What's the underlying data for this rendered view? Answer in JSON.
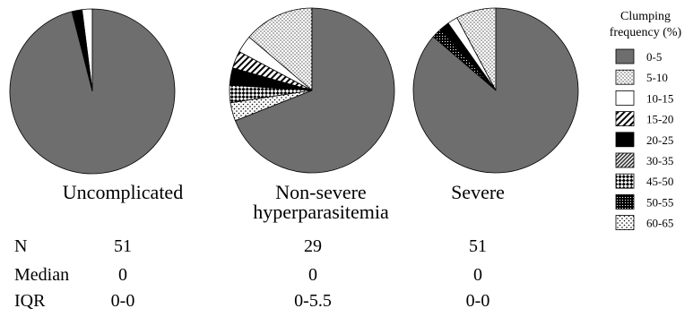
{
  "chart_data": {
    "type": "pie",
    "legend": {
      "title_lines": [
        "Clumping",
        "frequency (%)"
      ],
      "placement": "right",
      "entries": [
        {
          "label": "0-5",
          "pattern": "solid-gray"
        },
        {
          "label": "5-10",
          "pattern": "fine-dots"
        },
        {
          "label": "10-15",
          "pattern": "white"
        },
        {
          "label": "15-20",
          "pattern": "diagonal-hatch"
        },
        {
          "label": "20-25",
          "pattern": "solid-black"
        },
        {
          "label": "30-35",
          "pattern": "dense-diagonal"
        },
        {
          "label": "45-50",
          "pattern": "checkerboard"
        },
        {
          "label": "50-55",
          "pattern": "dense-grid"
        },
        {
          "label": "60-65",
          "pattern": "sparse-dots"
        }
      ]
    },
    "colors": {
      "slice_fill": "#6e6e6e",
      "outline": "#000000"
    },
    "pies": [
      {
        "name": "Uncomplicated",
        "label_lines": [
          "Uncomplicated"
        ],
        "n": "51",
        "median": "0",
        "iqr": "0-0",
        "slices": [
          {
            "category": "0-5",
            "percent": 96.0
          },
          {
            "category": "10-15",
            "percent": 2.0
          },
          {
            "category": "20-25",
            "percent": 2.0
          }
        ]
      },
      {
        "name": "Non-severe hyperparasitemia",
        "label_lines": [
          "Non-severe",
          "hyperparasitemia"
        ],
        "n": "29",
        "median": "0",
        "iqr": "0-5.5",
        "slices": [
          {
            "category": "0-5",
            "percent": 69.0
          },
          {
            "category": "5-10",
            "percent": 13.8
          },
          {
            "category": "10-15",
            "percent": 3.4
          },
          {
            "category": "15-20",
            "percent": 3.4
          },
          {
            "category": "20-25",
            "percent": 3.4
          },
          {
            "category": "45-50",
            "percent": 3.4
          },
          {
            "category": "60-65",
            "percent": 3.6
          }
        ]
      },
      {
        "name": "Severe",
        "label_lines": [
          "Severe"
        ],
        "n": "51",
        "median": "0",
        "iqr": "0-0",
        "slices": [
          {
            "category": "0-5",
            "percent": 86.3
          },
          {
            "category": "5-10",
            "percent": 7.8
          },
          {
            "category": "10-15",
            "percent": 2.0
          },
          {
            "category": "20-25",
            "percent": 2.0
          },
          {
            "category": "50-55",
            "percent": 1.9
          }
        ]
      }
    ],
    "stat_labels": {
      "n": "N",
      "median": "Median",
      "iqr": "IQR"
    }
  }
}
